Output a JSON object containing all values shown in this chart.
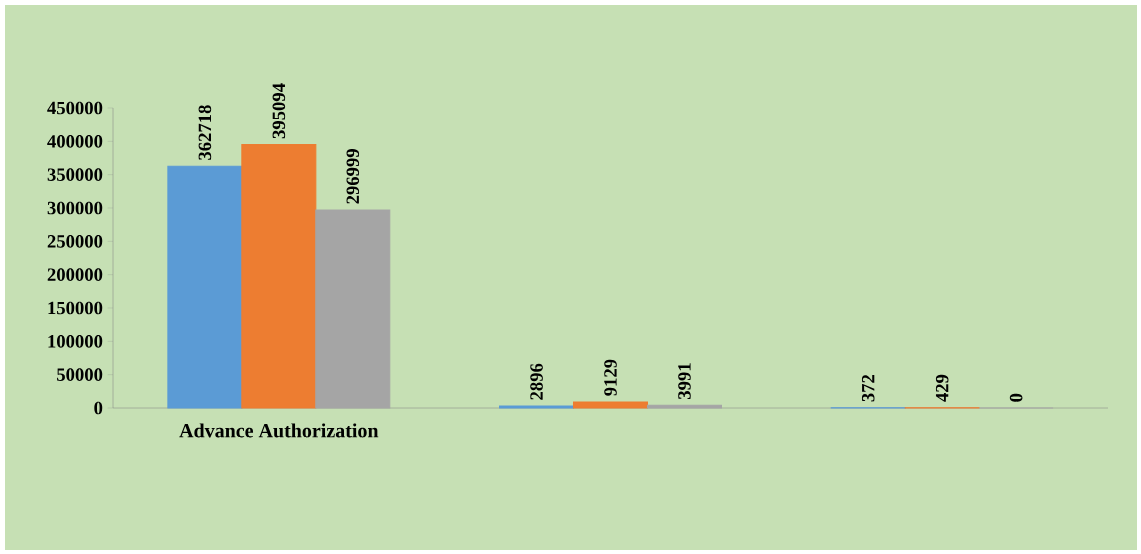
{
  "chart_data": {
    "type": "bar",
    "categories": [
      "Advance Authorization",
      null,
      null
    ],
    "series": [
      {
        "color": "#5b9bd5",
        "values": [
          362718,
          2896,
          372
        ]
      },
      {
        "color": "#ed7d31",
        "values": [
          395094,
          9129,
          429
        ]
      },
      {
        "color": "#a5a5a5",
        "values": [
          296999,
          3991,
          0
        ]
      }
    ],
    "ylim": [
      0,
      450000
    ],
    "yticks": [
      0,
      50000,
      100000,
      150000,
      200000,
      250000,
      300000,
      350000,
      400000,
      450000
    ],
    "data_labels": true
  }
}
